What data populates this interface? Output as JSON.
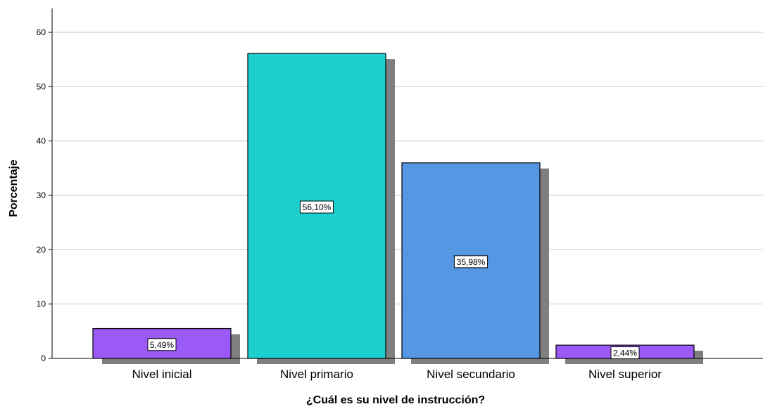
{
  "chart_data": {
    "type": "bar",
    "categories": [
      "Nivel inicial",
      "Nivel primario",
      "Nivel secundario",
      "Nivel superior"
    ],
    "values": [
      5.49,
      56.1,
      35.98,
      2.44
    ],
    "data_labels": [
      "5,49%",
      "56,10%",
      "35,98%",
      "2,44%"
    ],
    "colors": [
      "#9b59f7",
      "#1dcfcf",
      "#5597e3",
      "#9b59f7"
    ],
    "shadow_color": "#7f7f7f",
    "xlabel": "¿Cuál es su nivel de instrucción?",
    "ylabel": "Porcentaje",
    "ylim": [
      0,
      64
    ],
    "yticks": [
      0,
      10,
      20,
      30,
      40,
      50,
      60
    ],
    "grid": true
  }
}
